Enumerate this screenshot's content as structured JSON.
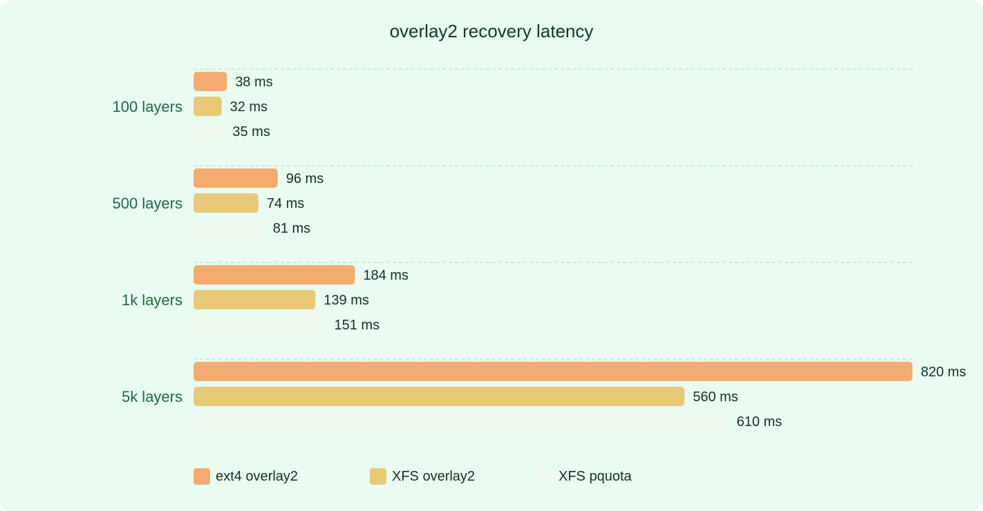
{
  "chart_data": {
    "type": "bar",
    "orientation": "horizontal",
    "title": "overlay2 recovery latency",
    "categories": [
      "100 layers",
      "500 layers",
      "1k layers",
      "5k layers"
    ],
    "series": [
      {
        "name": "ext4 overlay2",
        "values": [
          38,
          96,
          184,
          820
        ],
        "color": "#f3ab71"
      },
      {
        "name": "XFS overlay2",
        "values": [
          32,
          74,
          139,
          560
        ],
        "color": "#e9c977"
      },
      {
        "name": "XFS pquota",
        "values": [
          35,
          81,
          151,
          610
        ],
        "color": "#eff9ee"
      }
    ],
    "value_unit": "ms",
    "xlim": [
      0,
      820
    ],
    "grid": true,
    "legend_position": "bottom"
  },
  "colors": {
    "background": "#eafbf2",
    "category_label": "#1d6b3b",
    "value_label": "#16301f",
    "grid": "#bfe3cc"
  }
}
